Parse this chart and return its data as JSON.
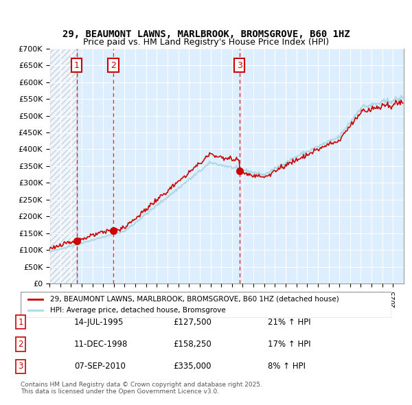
{
  "title": "29, BEAUMONT LAWNS, MARLBROOK, BROMSGROVE, B60 1HZ",
  "subtitle": "Price paid vs. HM Land Registry's House Price Index (HPI)",
  "legend_line1": "29, BEAUMONT LAWNS, MARLBROOK, BROMSGROVE, B60 1HZ (detached house)",
  "legend_line2": "HPI: Average price, detached house, Bromsgrove",
  "sale_dates": [
    "14-JUL-1995",
    "11-DEC-1998",
    "07-SEP-2010"
  ],
  "sale_prices": [
    127500,
    158250,
    335000
  ],
  "sale_hpi_pct": [
    "21% ↑ HPI",
    "17% ↑ HPI",
    "8% ↑ HPI"
  ],
  "sale_years": [
    1995.54,
    1998.95,
    2010.69
  ],
  "hpi_color": "#add8e6",
  "price_color": "#cc0000",
  "dashed_line_color": "#cc0000",
  "background_hatch_color": "#cccccc",
  "plot_bg_color": "#ddeeff",
  "ylim": [
    0,
    700000
  ],
  "ytick_step": 50000,
  "xmin": 1993,
  "xmax": 2026,
  "copyright": "Contains HM Land Registry data © Crown copyright and database right 2025.\nThis data is licensed under the Open Government Licence v3.0."
}
